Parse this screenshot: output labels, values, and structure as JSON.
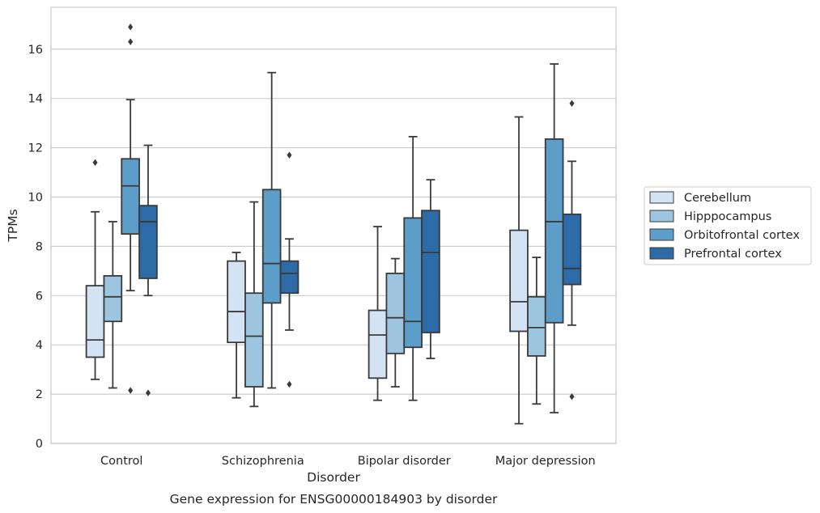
{
  "chart_data": {
    "type": "box",
    "title": "Gene expression for ENSG00000184903 by disorder",
    "xlabel": "Disorder",
    "ylabel": "TPMs",
    "ylim": [
      0,
      17.7
    ],
    "yticks": [
      0,
      2,
      4,
      6,
      8,
      10,
      12,
      14,
      16
    ],
    "grid": true,
    "legend_position": "right",
    "categories": [
      "Control",
      "Schizophrenia",
      "Bipolar disorder",
      "Major depression"
    ],
    "series": [
      {
        "name": "Cerebellum",
        "color": "#d4e3f3",
        "boxes": [
          {
            "whislo": 2.6,
            "q1": 3.5,
            "med": 4.2,
            "q3": 6.4,
            "whishi": 9.4,
            "fliers": [
              11.4
            ]
          },
          {
            "whislo": 1.85,
            "q1": 4.1,
            "med": 5.35,
            "q3": 7.4,
            "whishi": 7.75,
            "fliers": []
          },
          {
            "whislo": 1.75,
            "q1": 2.65,
            "med": 4.4,
            "q3": 5.4,
            "whishi": 8.8,
            "fliers": []
          },
          {
            "whislo": 0.8,
            "q1": 4.55,
            "med": 5.75,
            "q3": 8.65,
            "whishi": 13.25,
            "fliers": []
          }
        ]
      },
      {
        "name": "Hipppocampus",
        "color": "#9ec5df",
        "boxes": [
          {
            "whislo": 2.25,
            "q1": 4.95,
            "med": 5.95,
            "q3": 6.8,
            "whishi": 9.0,
            "fliers": []
          },
          {
            "whislo": 1.5,
            "q1": 2.3,
            "med": 4.35,
            "q3": 6.1,
            "whishi": 9.8,
            "fliers": []
          },
          {
            "whislo": 2.3,
            "q1": 3.65,
            "med": 5.1,
            "q3": 6.9,
            "whishi": 7.5,
            "fliers": []
          },
          {
            "whislo": 1.6,
            "q1": 3.55,
            "med": 4.7,
            "q3": 5.95,
            "whishi": 7.55,
            "fliers": []
          }
        ]
      },
      {
        "name": "Orbitofrontal cortex",
        "color": "#5c9dc9",
        "boxes": [
          {
            "whislo": 6.2,
            "q1": 8.5,
            "med": 10.45,
            "q3": 11.55,
            "whishi": 13.95,
            "fliers": [
              16.9,
              16.3,
              2.15
            ]
          },
          {
            "whislo": 2.25,
            "q1": 5.7,
            "med": 7.3,
            "q3": 10.3,
            "whishi": 15.05,
            "fliers": []
          },
          {
            "whislo": 1.75,
            "q1": 3.9,
            "med": 4.95,
            "q3": 9.15,
            "whishi": 12.45,
            "fliers": []
          },
          {
            "whislo": 1.25,
            "q1": 4.9,
            "med": 9.0,
            "q3": 12.35,
            "whishi": 15.4,
            "fliers": []
          }
        ]
      },
      {
        "name": "Prefrontal cortex",
        "color": "#2c6aa8",
        "boxes": [
          {
            "whislo": 6.0,
            "q1": 6.7,
            "med": 9.0,
            "q3": 9.65,
            "whishi": 12.1,
            "fliers": [
              2.05
            ]
          },
          {
            "whislo": 4.6,
            "q1": 6.1,
            "med": 6.9,
            "q3": 7.4,
            "whishi": 8.3,
            "fliers": [
              11.7,
              2.4
            ]
          },
          {
            "whislo": 3.45,
            "q1": 4.5,
            "med": 7.75,
            "q3": 9.45,
            "whishi": 10.7,
            "fliers": []
          },
          {
            "whislo": 4.8,
            "q1": 6.45,
            "med": 7.1,
            "q3": 9.3,
            "whishi": 11.45,
            "fliers": [
              13.8,
              1.9
            ]
          }
        ]
      }
    ]
  }
}
